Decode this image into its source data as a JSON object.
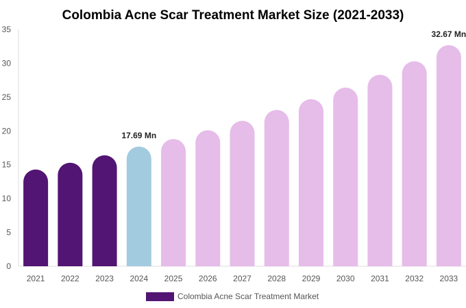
{
  "chart_data": {
    "type": "bar",
    "title": "Colombia Acne Scar Treatment Market Size (2021-2033)",
    "categories": [
      "2021",
      "2022",
      "2023",
      "2024",
      "2025",
      "2026",
      "2027",
      "2028",
      "2029",
      "2030",
      "2031",
      "2032",
      "2033"
    ],
    "series": [
      {
        "name": "Colombia Acne Scar Treatment Market",
        "values": [
          14.3,
          15.3,
          16.4,
          17.69,
          18.8,
          20.1,
          21.5,
          23.1,
          24.7,
          26.4,
          28.3,
          30.3,
          32.67
        ]
      }
    ],
    "data_labels": [
      {
        "category": "2024",
        "text": "17.69 Mn"
      },
      {
        "category": "2033",
        "text": "32.67 Mn"
      }
    ],
    "ylim": [
      0,
      35
    ],
    "yticks": [
      0,
      5,
      10,
      15,
      20,
      25,
      30,
      35
    ],
    "grid": false,
    "legend_position": "bottom",
    "colors": {
      "historical": "#521573",
      "current": "#a3cbe0",
      "forecast": "#e6bce9",
      "legend": "#521573"
    },
    "bar_color_groups": [
      "historical",
      "historical",
      "historical",
      "current",
      "forecast",
      "forecast",
      "forecast",
      "forecast",
      "forecast",
      "forecast",
      "forecast",
      "forecast",
      "forecast"
    ]
  }
}
